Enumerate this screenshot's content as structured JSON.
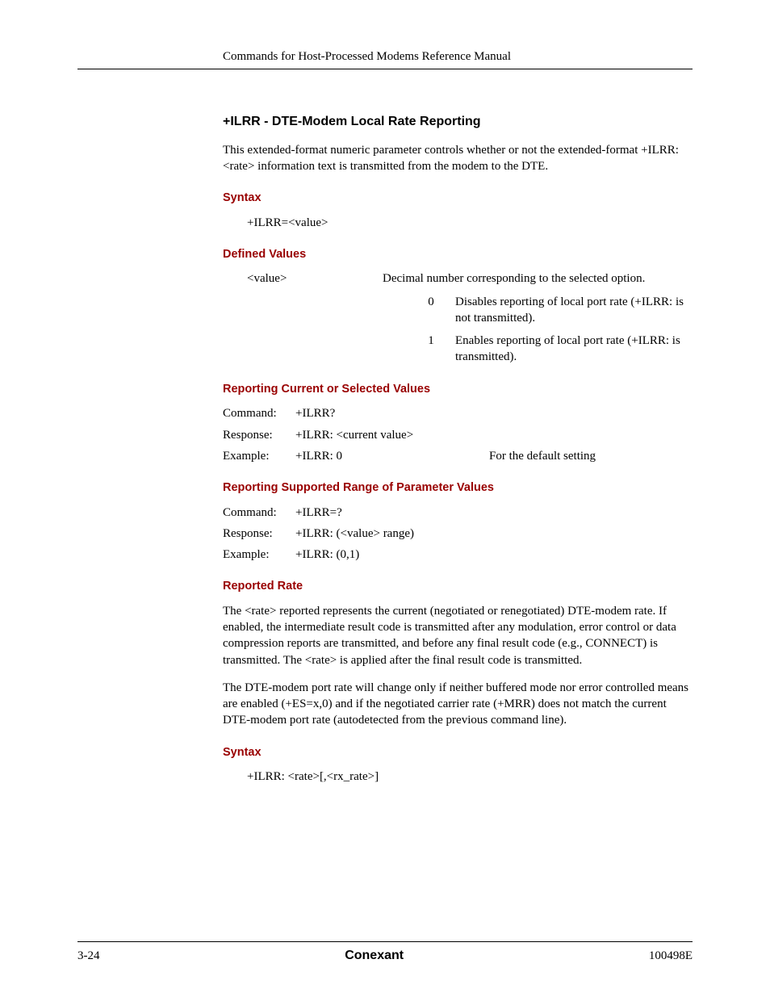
{
  "header": {
    "running": "Commands for Host-Processed Modems Reference Manual"
  },
  "section": {
    "title": "+ILRR - DTE-Modem Local Rate Reporting",
    "intro": " This extended-format numeric parameter controls whether or not the extended-format +ILRR:<rate> information text is transmitted from the modem to the DTE."
  },
  "syntax1": {
    "heading": "Syntax",
    "text": "+ILRR=<value>"
  },
  "defined": {
    "heading": "Defined Values",
    "param": "<value>",
    "desc": "Decimal number corresponding to the selected option.",
    "opts": [
      {
        "n": "0",
        "t": "Disables reporting of local port rate (+ILRR: is not transmitted)."
      },
      {
        "n": "1",
        "t": "Enables reporting of local port rate (+ILRR: is transmitted)."
      }
    ]
  },
  "report_current": {
    "heading": "Reporting Current or Selected Values",
    "rows": [
      {
        "lbl": "Command:",
        "val": "+ILRR?",
        "note": ""
      },
      {
        "lbl": "Response:",
        "val": "+ILRR: <current value>",
        "note": ""
      },
      {
        "lbl": "Example:",
        "val": "+ILRR: 0",
        "note": "For the default setting"
      }
    ]
  },
  "report_range": {
    "heading": "Reporting Supported Range of Parameter Values",
    "rows": [
      {
        "lbl": "Command:",
        "val": "+ILRR=?",
        "note": ""
      },
      {
        "lbl": "Response:",
        "val": "+ILRR: (<value> range)",
        "note": ""
      },
      {
        "lbl": "Example:",
        "val": "+ILRR: (0,1)",
        "note": ""
      }
    ]
  },
  "reported_rate": {
    "heading": "Reported Rate",
    "p1": "The <rate> reported represents the current (negotiated or renegotiated) DTE-modem rate. If enabled, the intermediate result code is transmitted after any modulation, error control or data compression reports are transmitted, and before any final result code (e.g., CONNECT) is transmitted. The <rate> is applied after the final result code is transmitted.",
    "p2": "The DTE-modem port rate will change only if neither buffered mode nor error controlled means are enabled (+ES=x,0) and if the negotiated carrier rate (+MRR) does not match the current DTE-modem port rate (autodetected from the previous command line)."
  },
  "syntax2": {
    "heading": "Syntax",
    "text": "+ILRR: <rate>[,<rx_rate>]"
  },
  "footer": {
    "left": "3-24",
    "center": "Conexant",
    "right": "100498E"
  }
}
